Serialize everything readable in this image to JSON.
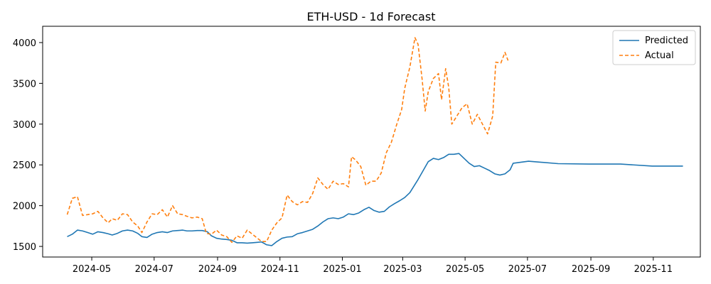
{
  "chart_data": {
    "type": "line",
    "title": "ETH-USD - 1d Forecast",
    "xlabel": "",
    "ylabel": "",
    "x_type": "date",
    "xlim": [
      "2024-03-14",
      "2025-12-17"
    ],
    "ylim": [
      1370,
      4200
    ],
    "x_ticks": [
      "2024-05-01",
      "2024-07-01",
      "2024-09-01",
      "2024-11-01",
      "2025-01-01",
      "2025-03-01",
      "2025-05-01",
      "2025-07-01",
      "2025-09-01",
      "2025-11-01"
    ],
    "x_tick_labels": [
      "2024-05",
      "2024-07",
      "2024-09",
      "2024-11",
      "2025-01",
      "2025-03",
      "2025-05",
      "2025-07",
      "2025-09",
      "2025-11"
    ],
    "y_ticks": [
      1500,
      2000,
      2500,
      3000,
      3500,
      4000
    ],
    "y_tick_labels": [
      "1500",
      "2000",
      "2500",
      "3000",
      "3500",
      "4000"
    ],
    "grid": false,
    "legend": {
      "placement": "top-right"
    },
    "colors": {
      "predicted": "#1f77b4",
      "actual": "#ff7f0e"
    },
    "series": [
      {
        "name": "Predicted",
        "style": "solid",
        "color": "#1f77b4",
        "points": [
          [
            "2024-04-07",
            1620
          ],
          [
            "2024-04-12",
            1650
          ],
          [
            "2024-04-17",
            1700
          ],
          [
            "2024-04-22",
            1690
          ],
          [
            "2024-04-27",
            1670
          ],
          [
            "2024-05-02",
            1650
          ],
          [
            "2024-05-07",
            1680
          ],
          [
            "2024-05-12",
            1670
          ],
          [
            "2024-05-17",
            1655
          ],
          [
            "2024-05-21",
            1640
          ],
          [
            "2024-05-26",
            1660
          ],
          [
            "2024-05-31",
            1690
          ],
          [
            "2024-06-05",
            1700
          ],
          [
            "2024-06-10",
            1690
          ],
          [
            "2024-06-15",
            1660
          ],
          [
            "2024-06-19",
            1620
          ],
          [
            "2024-06-24",
            1610
          ],
          [
            "2024-06-29",
            1650
          ],
          [
            "2024-07-04",
            1670
          ],
          [
            "2024-07-09",
            1680
          ],
          [
            "2024-07-14",
            1670
          ],
          [
            "2024-07-19",
            1690
          ],
          [
            "2024-07-24",
            1695
          ],
          [
            "2024-07-29",
            1700
          ],
          [
            "2024-08-02",
            1690
          ],
          [
            "2024-08-07",
            1690
          ],
          [
            "2024-08-12",
            1695
          ],
          [
            "2024-08-17",
            1695
          ],
          [
            "2024-08-22",
            1680
          ],
          [
            "2024-08-26",
            1630
          ],
          [
            "2024-08-31",
            1600
          ],
          [
            "2024-09-05",
            1590
          ],
          [
            "2024-09-10",
            1585
          ],
          [
            "2024-09-15",
            1575
          ],
          [
            "2024-09-20",
            1545
          ],
          [
            "2024-09-25",
            1545
          ],
          [
            "2024-09-30",
            1540
          ],
          [
            "2024-10-05",
            1545
          ],
          [
            "2024-10-10",
            1550
          ],
          [
            "2024-10-14",
            1555
          ],
          [
            "2024-10-19",
            1520
          ],
          [
            "2024-10-24",
            1510
          ],
          [
            "2024-10-29",
            1560
          ],
          [
            "2024-11-03",
            1600
          ],
          [
            "2024-11-08",
            1615
          ],
          [
            "2024-11-13",
            1620
          ],
          [
            "2024-11-18",
            1655
          ],
          [
            "2024-11-23",
            1670
          ],
          [
            "2024-11-28",
            1690
          ],
          [
            "2024-12-03",
            1710
          ],
          [
            "2024-12-08",
            1750
          ],
          [
            "2024-12-13",
            1800
          ],
          [
            "2024-12-18",
            1840
          ],
          [
            "2024-12-23",
            1850
          ],
          [
            "2024-12-28",
            1840
          ],
          [
            "2025-01-02",
            1860
          ],
          [
            "2025-01-07",
            1900
          ],
          [
            "2025-01-12",
            1890
          ],
          [
            "2025-01-17",
            1910
          ],
          [
            "2025-01-22",
            1950
          ],
          [
            "2025-01-27",
            1980
          ],
          [
            "2025-02-01",
            1940
          ],
          [
            "2025-02-06",
            1920
          ],
          [
            "2025-02-11",
            1930
          ],
          [
            "2025-02-16",
            1985
          ],
          [
            "2025-02-21",
            2025
          ],
          [
            "2025-02-26",
            2060
          ],
          [
            "2025-03-03",
            2100
          ],
          [
            "2025-03-08",
            2160
          ],
          [
            "2025-03-13",
            2260
          ],
          [
            "2025-03-16",
            2320
          ],
          [
            "2025-03-21",
            2430
          ],
          [
            "2025-03-26",
            2540
          ],
          [
            "2025-03-31",
            2580
          ],
          [
            "2025-04-05",
            2565
          ],
          [
            "2025-04-10",
            2590
          ],
          [
            "2025-04-15",
            2630
          ],
          [
            "2025-04-20",
            2630
          ],
          [
            "2025-04-25",
            2640
          ],
          [
            "2025-04-30",
            2580
          ],
          [
            "2025-05-05",
            2520
          ],
          [
            "2025-05-10",
            2480
          ],
          [
            "2025-05-15",
            2490
          ],
          [
            "2025-05-20",
            2460
          ],
          [
            "2025-05-25",
            2430
          ],
          [
            "2025-05-30",
            2390
          ],
          [
            "2025-06-04",
            2375
          ],
          [
            "2025-06-09",
            2390
          ],
          [
            "2025-06-14",
            2440
          ],
          [
            "2025-06-17",
            2520
          ],
          [
            "2025-07-02",
            2545
          ],
          [
            "2025-07-31",
            2515
          ],
          [
            "2025-08-30",
            2510
          ],
          [
            "2025-09-30",
            2510
          ],
          [
            "2025-10-31",
            2485
          ],
          [
            "2025-11-30",
            2485
          ]
        ]
      },
      {
        "name": "Actual",
        "style": "dashed",
        "color": "#ff7f0e",
        "points": [
          [
            "2024-04-07",
            1890
          ],
          [
            "2024-04-09",
            1970
          ],
          [
            "2024-04-12",
            2090
          ],
          [
            "2024-04-17",
            2110
          ],
          [
            "2024-04-22",
            1880
          ],
          [
            "2024-04-27",
            1890
          ],
          [
            "2024-05-02",
            1900
          ],
          [
            "2024-05-07",
            1930
          ],
          [
            "2024-05-12",
            1850
          ],
          [
            "2024-05-17",
            1790
          ],
          [
            "2024-05-21",
            1840
          ],
          [
            "2024-05-26",
            1820
          ],
          [
            "2024-05-31",
            1900
          ],
          [
            "2024-06-05",
            1890
          ],
          [
            "2024-06-10",
            1800
          ],
          [
            "2024-06-15",
            1750
          ],
          [
            "2024-06-19",
            1670
          ],
          [
            "2024-06-24",
            1800
          ],
          [
            "2024-06-29",
            1900
          ],
          [
            "2024-07-04",
            1890
          ],
          [
            "2024-07-09",
            1950
          ],
          [
            "2024-07-14",
            1860
          ],
          [
            "2024-07-19",
            2000
          ],
          [
            "2024-07-24",
            1900
          ],
          [
            "2024-07-29",
            1890
          ],
          [
            "2024-08-02",
            1870
          ],
          [
            "2024-08-07",
            1850
          ],
          [
            "2024-08-12",
            1860
          ],
          [
            "2024-08-17",
            1840
          ],
          [
            "2024-08-21",
            1660
          ],
          [
            "2024-08-26",
            1650
          ],
          [
            "2024-08-31",
            1700
          ],
          [
            "2024-09-05",
            1640
          ],
          [
            "2024-09-10",
            1620
          ],
          [
            "2024-09-15",
            1550
          ],
          [
            "2024-09-20",
            1630
          ],
          [
            "2024-09-25",
            1600
          ],
          [
            "2024-09-30",
            1700
          ],
          [
            "2024-10-05",
            1650
          ],
          [
            "2024-10-10",
            1600
          ],
          [
            "2024-10-14",
            1560
          ],
          [
            "2024-10-19",
            1560
          ],
          [
            "2024-10-24",
            1700
          ],
          [
            "2024-10-29",
            1790
          ],
          [
            "2024-11-03",
            1850
          ],
          [
            "2024-11-08",
            2130
          ],
          [
            "2024-11-13",
            2050
          ],
          [
            "2024-11-18",
            2010
          ],
          [
            "2024-11-23",
            2050
          ],
          [
            "2024-11-28",
            2040
          ],
          [
            "2024-12-03",
            2150
          ],
          [
            "2024-12-08",
            2340
          ],
          [
            "2024-12-13",
            2260
          ],
          [
            "2024-12-18",
            2200
          ],
          [
            "2024-12-23",
            2300
          ],
          [
            "2024-12-28",
            2260
          ],
          [
            "2025-01-02",
            2270
          ],
          [
            "2025-01-07",
            2230
          ],
          [
            "2025-01-10",
            2600
          ],
          [
            "2025-01-14",
            2560
          ],
          [
            "2025-01-19",
            2480
          ],
          [
            "2025-01-24",
            2250
          ],
          [
            "2025-01-29",
            2300
          ],
          [
            "2025-02-03",
            2300
          ],
          [
            "2025-02-08",
            2400
          ],
          [
            "2025-02-13",
            2650
          ],
          [
            "2025-02-18",
            2780
          ],
          [
            "2025-02-23",
            2990
          ],
          [
            "2025-02-28",
            3180
          ],
          [
            "2025-03-03",
            3440
          ],
          [
            "2025-03-08",
            3700
          ],
          [
            "2025-03-13",
            4060
          ],
          [
            "2025-03-16",
            3980
          ],
          [
            "2025-03-20",
            3550
          ],
          [
            "2025-03-23",
            3160
          ],
          [
            "2025-03-26",
            3400
          ],
          [
            "2025-03-31",
            3560
          ],
          [
            "2025-04-05",
            3620
          ],
          [
            "2025-04-08",
            3300
          ],
          [
            "2025-04-12",
            3680
          ],
          [
            "2025-04-15",
            3450
          ],
          [
            "2025-04-18",
            3000
          ],
          [
            "2025-04-23",
            3100
          ],
          [
            "2025-04-28",
            3200
          ],
          [
            "2025-05-03",
            3250
          ],
          [
            "2025-05-08",
            3000
          ],
          [
            "2025-05-13",
            3120
          ],
          [
            "2025-05-18",
            3000
          ],
          [
            "2025-05-23",
            2880
          ],
          [
            "2025-05-28",
            3100
          ],
          [
            "2025-05-31",
            3760
          ],
          [
            "2025-06-05",
            3750
          ],
          [
            "2025-06-09",
            3880
          ],
          [
            "2025-06-12",
            3780
          ]
        ]
      }
    ]
  }
}
